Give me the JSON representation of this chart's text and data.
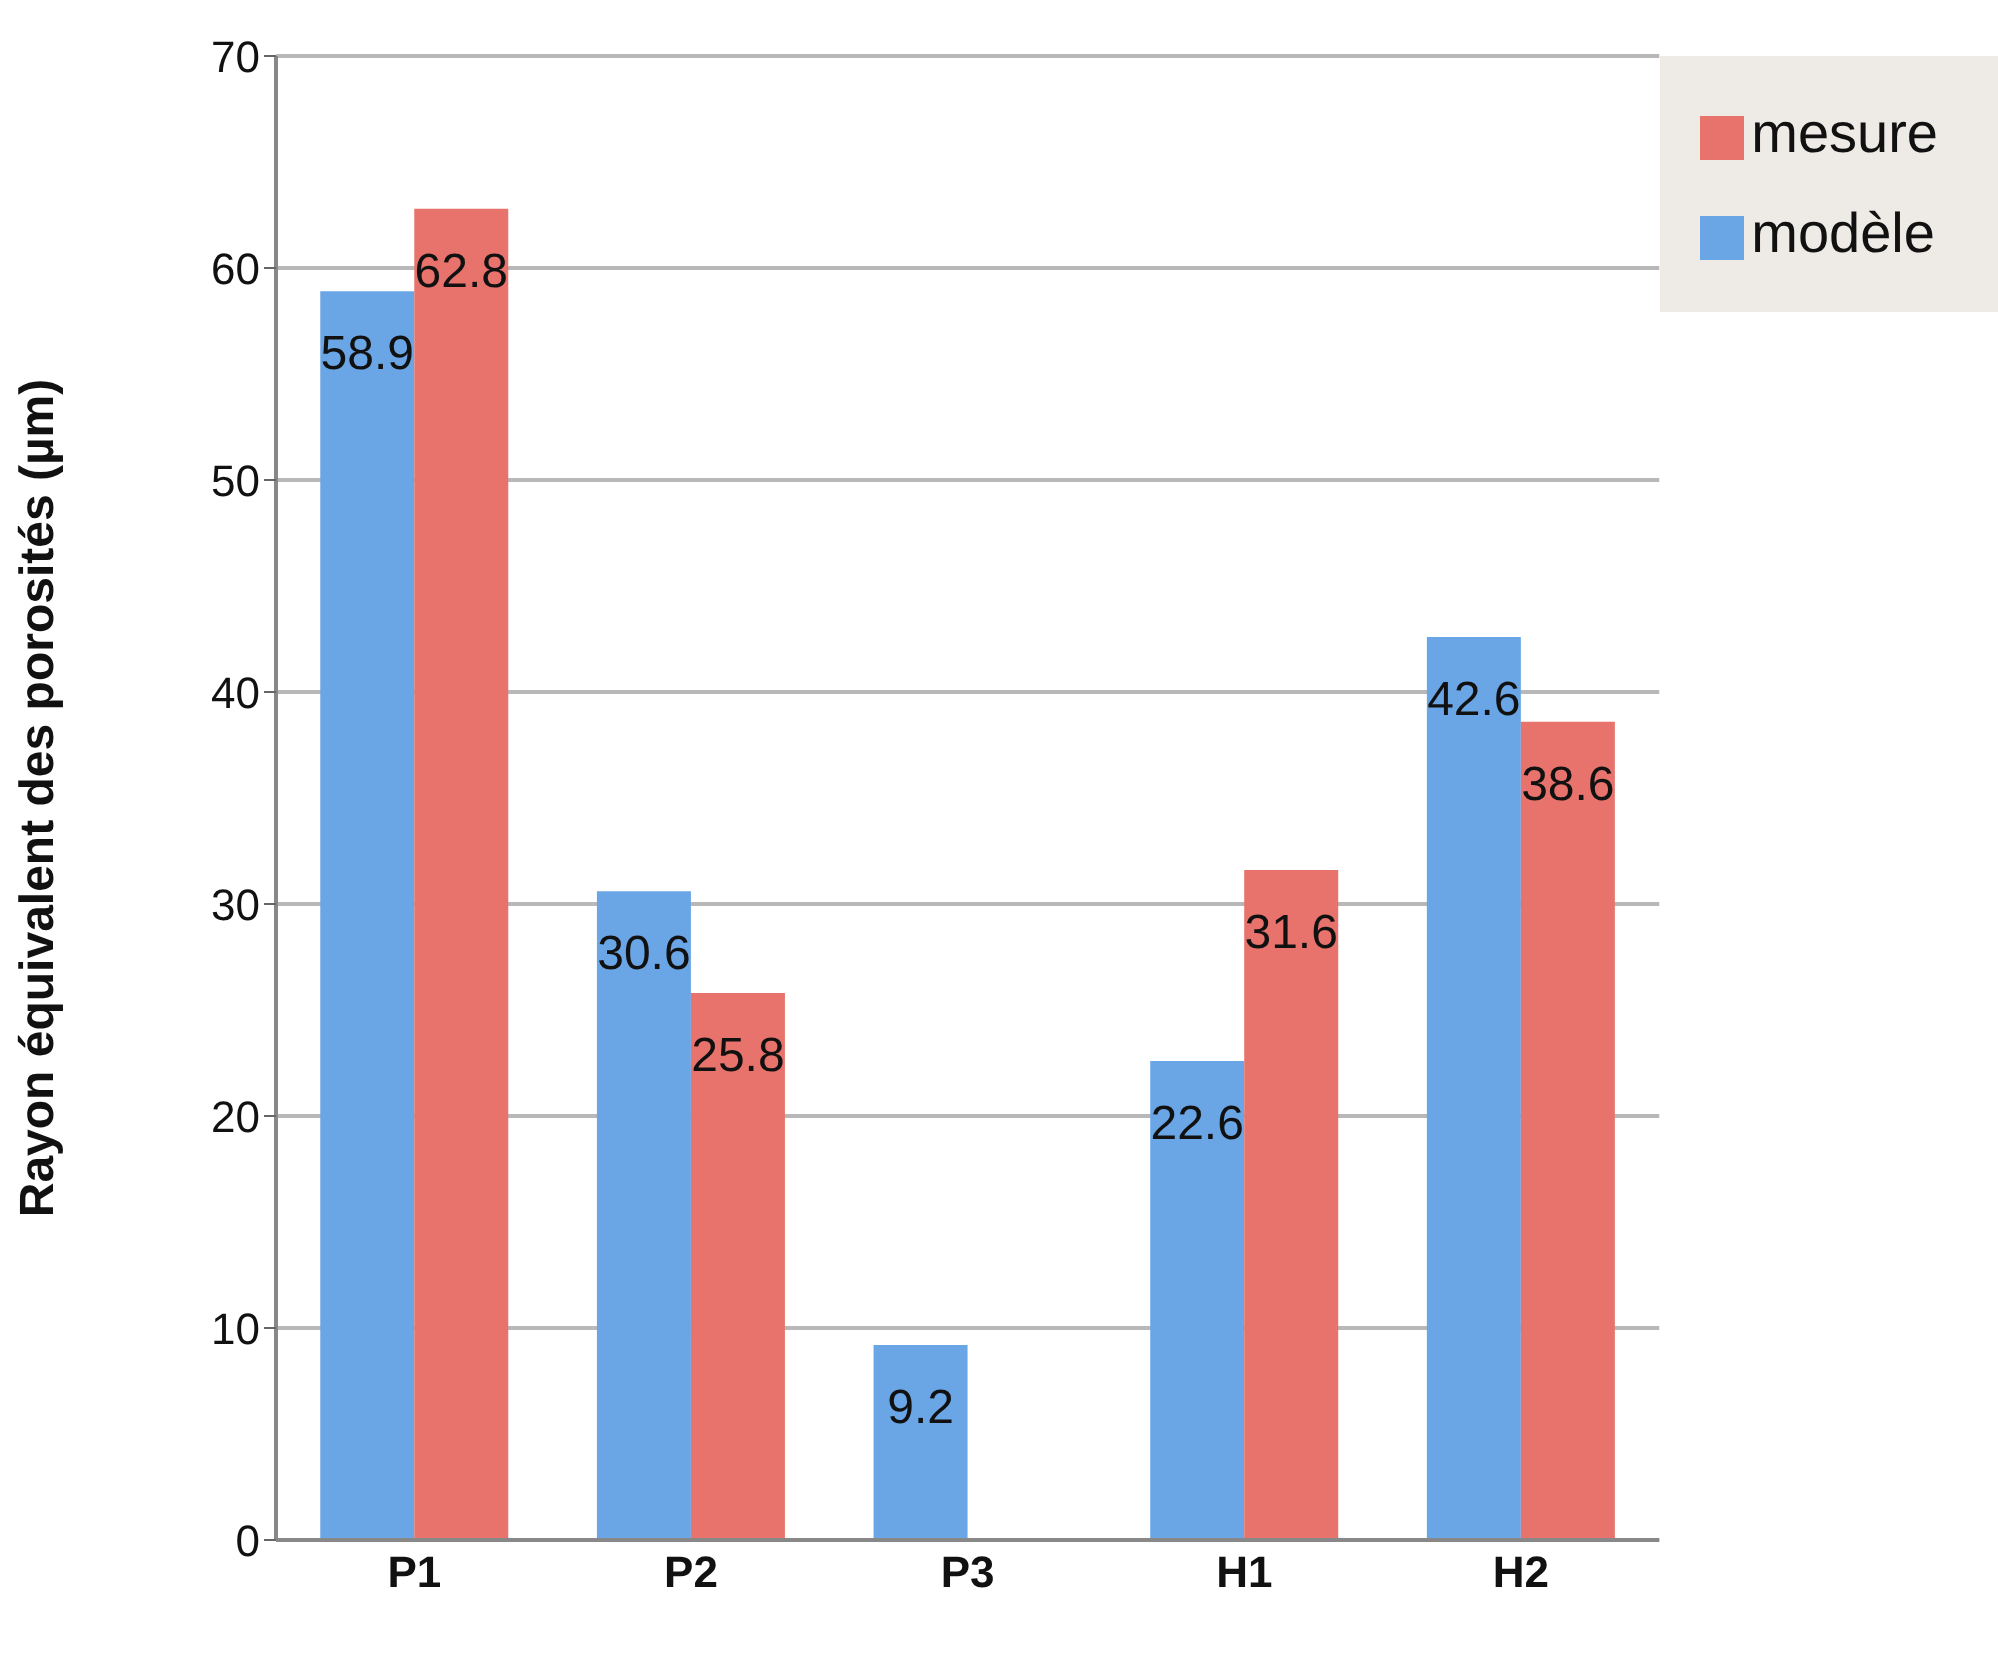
{
  "chart_data": {
    "type": "bar",
    "ylabel": "Rayon équivalent des porosités (µm)",
    "categories": [
      "P1",
      "P2",
      "P3",
      "H1",
      "H2"
    ],
    "series": [
      {
        "name": "modèle",
        "color": "#6aa6e6",
        "values": [
          58.9,
          30.6,
          9.2,
          22.6,
          42.6
        ]
      },
      {
        "name": "mesure",
        "color": "#e7736c",
        "values": [
          62.8,
          25.8,
          null,
          31.6,
          38.6
        ]
      }
    ],
    "ylim": [
      0,
      70
    ],
    "yticks": [
      0,
      10,
      20,
      30,
      40,
      50,
      60,
      70
    ],
    "grid": "y",
    "legend": "top right",
    "data_labels": true
  }
}
